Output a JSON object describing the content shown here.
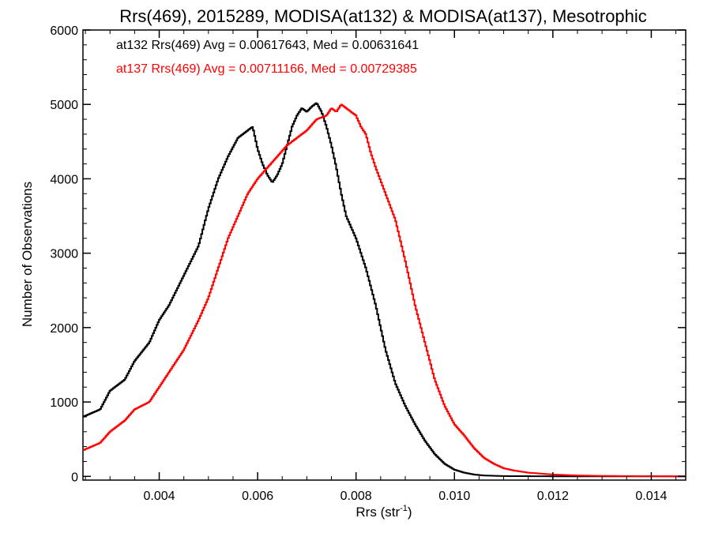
{
  "chart_data": {
    "type": "line",
    "title": "Rrs(469), 2015289, MODISA(at132) & MODISA(at137), Mesotrophic",
    "xlabel": "Rrs (str",
    "xlabel_sup": "-1",
    "xlabel_close": ")",
    "ylabel": "Number of Observations",
    "xlim": [
      0.00245,
      0.0147
    ],
    "ylim": [
      -50,
      6000
    ],
    "xticks": [
      0.004,
      0.006,
      0.008,
      0.01,
      0.012,
      0.014
    ],
    "xtick_labels": [
      "0.004",
      "0.006",
      "0.008",
      "0.010",
      "0.012",
      "0.014"
    ],
    "yticks": [
      0,
      1000,
      2000,
      3000,
      4000,
      5000,
      6000
    ],
    "ytick_labels": [
      "0",
      "1000",
      "2000",
      "3000",
      "4000",
      "5000",
      "6000"
    ],
    "grid": false,
    "annotations": [
      {
        "text": "at132 Rrs(469) Avg = 0.00617643, Med = 0.00631641",
        "color": "#000000"
      },
      {
        "text": "at137 Rrs(469) Avg = 0.00711166, Med = 0.00729385",
        "color": "#ff0000"
      }
    ],
    "series": [
      {
        "color": "#000000",
        "x": [
          0.00245,
          0.0028,
          0.003,
          0.0033,
          0.0035,
          0.0038,
          0.004,
          0.0042,
          0.0045,
          0.0048,
          0.005,
          0.0052,
          0.0054,
          0.0056,
          0.0058,
          0.0059,
          0.006,
          0.0061,
          0.0062,
          0.0063,
          0.0064,
          0.0065,
          0.0066,
          0.0067,
          0.0068,
          0.0069,
          0.007,
          0.0071,
          0.0072,
          0.0073,
          0.0074,
          0.0075,
          0.0076,
          0.0077,
          0.0078,
          0.008,
          0.0082,
          0.0084,
          0.0086,
          0.0088,
          0.009,
          0.0092,
          0.0094,
          0.0096,
          0.0098,
          0.01,
          0.0102,
          0.0104,
          0.0106,
          0.011,
          0.012,
          0.0147
        ],
        "y": [
          800,
          900,
          1150,
          1300,
          1550,
          1800,
          2100,
          2300,
          2700,
          3100,
          3600,
          4000,
          4300,
          4550,
          4650,
          4700,
          4400,
          4200,
          4050,
          3950,
          4050,
          4200,
          4450,
          4700,
          4850,
          4950,
          4900,
          4970,
          5020,
          4900,
          4700,
          4450,
          4150,
          3800,
          3500,
          3200,
          2800,
          2300,
          1700,
          1250,
          950,
          700,
          480,
          300,
          170,
          90,
          50,
          25,
          12,
          4,
          1,
          0
        ]
      },
      {
        "color": "#ff0000",
        "x": [
          0.00245,
          0.0028,
          0.003,
          0.0033,
          0.0035,
          0.0038,
          0.004,
          0.0042,
          0.0045,
          0.0048,
          0.005,
          0.0052,
          0.0054,
          0.0056,
          0.0058,
          0.006,
          0.0062,
          0.0064,
          0.0066,
          0.0068,
          0.007,
          0.0072,
          0.0074,
          0.0075,
          0.0076,
          0.0077,
          0.0078,
          0.0079,
          0.008,
          0.0081,
          0.0082,
          0.0083,
          0.0084,
          0.0086,
          0.0088,
          0.009,
          0.0092,
          0.0094,
          0.0096,
          0.0098,
          0.01,
          0.0102,
          0.0104,
          0.0106,
          0.0108,
          0.011,
          0.0112,
          0.0115,
          0.012,
          0.0125,
          0.013,
          0.0147
        ],
        "y": [
          350,
          450,
          600,
          750,
          900,
          1000,
          1200,
          1400,
          1700,
          2100,
          2400,
          2800,
          3200,
          3500,
          3800,
          4000,
          4150,
          4300,
          4450,
          4550,
          4650,
          4800,
          4850,
          4950,
          4900,
          5000,
          4950,
          4900,
          4850,
          4700,
          4600,
          4350,
          4150,
          3800,
          3450,
          2900,
          2300,
          1800,
          1300,
          950,
          700,
          550,
          380,
          250,
          170,
          110,
          80,
          50,
          25,
          12,
          6,
          0
        ]
      }
    ]
  }
}
